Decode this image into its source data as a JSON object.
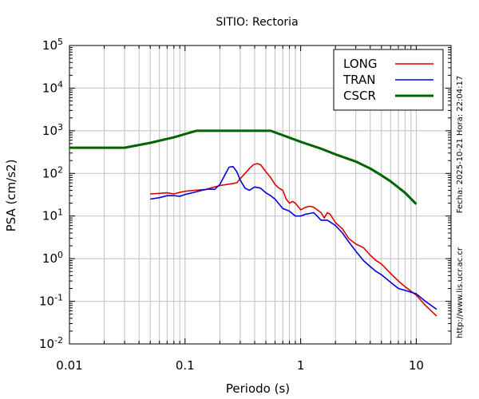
{
  "chart_data": {
    "type": "line",
    "title": "SITIO: Rectoria",
    "xlabel": "Periodo (s)",
    "ylabel": "PSA (cm/s2)",
    "xscale": "log",
    "yscale": "log",
    "xlim": [
      0.01,
      20
    ],
    "ylim": [
      0.01,
      100000
    ],
    "grid": true,
    "legend_position": "top-right",
    "x_ticks": [
      {
        "value": 0.01,
        "label": "0.01"
      },
      {
        "value": 0.1,
        "label": "0.1"
      },
      {
        "value": 1,
        "label": "1"
      },
      {
        "value": 10,
        "label": "10"
      }
    ],
    "y_ticks": [
      {
        "value": 0.01,
        "base": "10",
        "exp": "-2"
      },
      {
        "value": 0.1,
        "base": "10",
        "exp": "-1"
      },
      {
        "value": 1,
        "base": "10",
        "exp": "0"
      },
      {
        "value": 10,
        "base": "10",
        "exp": "1"
      },
      {
        "value": 100,
        "base": "10",
        "exp": "2"
      },
      {
        "value": 1000,
        "base": "10",
        "exp": "3"
      },
      {
        "value": 10000,
        "base": "10",
        "exp": "4"
      },
      {
        "value": 100000,
        "base": "10",
        "exp": "5"
      }
    ],
    "side_text": {
      "timestamp": "Fecha: 2025-10-21 Hora: 22:04:17",
      "url": "http://www.lis.ucr.ac.cr"
    },
    "series": [
      {
        "name": "LONG",
        "color": "#e00000",
        "points": [
          [
            0.05,
            33
          ],
          [
            0.06,
            34
          ],
          [
            0.07,
            35
          ],
          [
            0.08,
            33
          ],
          [
            0.09,
            36
          ],
          [
            0.1,
            38
          ],
          [
            0.12,
            40
          ],
          [
            0.15,
            42
          ],
          [
            0.18,
            48
          ],
          [
            0.2,
            52
          ],
          [
            0.23,
            55
          ],
          [
            0.26,
            58
          ],
          [
            0.28,
            60
          ],
          [
            0.3,
            75
          ],
          [
            0.33,
            100
          ],
          [
            0.36,
            130
          ],
          [
            0.39,
            160
          ],
          [
            0.42,
            170
          ],
          [
            0.45,
            160
          ],
          [
            0.5,
            110
          ],
          [
            0.55,
            80
          ],
          [
            0.6,
            55
          ],
          [
            0.65,
            45
          ],
          [
            0.7,
            40
          ],
          [
            0.75,
            25
          ],
          [
            0.8,
            20
          ],
          [
            0.85,
            22
          ],
          [
            0.9,
            20
          ],
          [
            1.0,
            14
          ],
          [
            1.1,
            16
          ],
          [
            1.2,
            17
          ],
          [
            1.3,
            16
          ],
          [
            1.5,
            12
          ],
          [
            1.6,
            9
          ],
          [
            1.7,
            12
          ],
          [
            1.8,
            11
          ],
          [
            2.0,
            7
          ],
          [
            2.3,
            5
          ],
          [
            2.6,
            3
          ],
          [
            3.0,
            2.2
          ],
          [
            3.5,
            1.8
          ],
          [
            4.0,
            1.2
          ],
          [
            4.5,
            0.9
          ],
          [
            5.0,
            0.75
          ],
          [
            6.0,
            0.45
          ],
          [
            7.0,
            0.3
          ],
          [
            8.0,
            0.22
          ],
          [
            10.0,
            0.14
          ],
          [
            12.0,
            0.08
          ],
          [
            15.0,
            0.045
          ]
        ]
      },
      {
        "name": "TRAN",
        "color": "#0000e0",
        "points": [
          [
            0.05,
            25
          ],
          [
            0.06,
            27
          ],
          [
            0.07,
            30
          ],
          [
            0.08,
            30
          ],
          [
            0.09,
            29
          ],
          [
            0.1,
            32
          ],
          [
            0.12,
            36
          ],
          [
            0.14,
            40
          ],
          [
            0.16,
            43
          ],
          [
            0.18,
            42
          ],
          [
            0.2,
            55
          ],
          [
            0.22,
            90
          ],
          [
            0.24,
            140
          ],
          [
            0.26,
            145
          ],
          [
            0.28,
            110
          ],
          [
            0.3,
            70
          ],
          [
            0.33,
            45
          ],
          [
            0.36,
            40
          ],
          [
            0.4,
            48
          ],
          [
            0.45,
            45
          ],
          [
            0.5,
            35
          ],
          [
            0.55,
            30
          ],
          [
            0.6,
            25
          ],
          [
            0.7,
            15
          ],
          [
            0.8,
            13
          ],
          [
            0.9,
            10
          ],
          [
            1.0,
            10
          ],
          [
            1.1,
            11
          ],
          [
            1.3,
            12
          ],
          [
            1.5,
            8
          ],
          [
            1.7,
            8
          ],
          [
            2.0,
            6
          ],
          [
            2.3,
            4
          ],
          [
            2.6,
            2.5
          ],
          [
            3.0,
            1.5
          ],
          [
            3.5,
            0.9
          ],
          [
            4.0,
            0.65
          ],
          [
            4.5,
            0.5
          ],
          [
            5.0,
            0.42
          ],
          [
            6.0,
            0.28
          ],
          [
            7.0,
            0.2
          ],
          [
            8.0,
            0.18
          ],
          [
            10.0,
            0.15
          ],
          [
            12.0,
            0.1
          ],
          [
            15.0,
            0.065
          ]
        ]
      },
      {
        "name": "CSCR",
        "color": "#006400",
        "points": [
          [
            0.01,
            400
          ],
          [
            0.03,
            400
          ],
          [
            0.05,
            520
          ],
          [
            0.08,
            700
          ],
          [
            0.125,
            1000
          ],
          [
            0.2,
            1000
          ],
          [
            0.55,
            1000
          ],
          [
            1.0,
            550
          ],
          [
            1.5,
            380
          ],
          [
            2.0,
            280
          ],
          [
            3.0,
            190
          ],
          [
            4.0,
            130
          ],
          [
            5.0,
            90
          ],
          [
            6.0,
            65
          ],
          [
            8.0,
            35
          ],
          [
            10.0,
            19
          ]
        ]
      }
    ]
  }
}
